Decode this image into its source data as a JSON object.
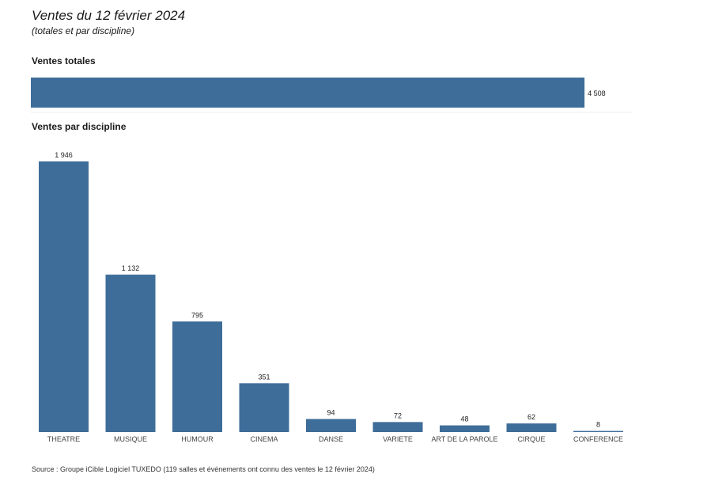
{
  "header": {
    "title": "Ventes du 12 février 2024",
    "subtitle": "(totales et par discipline)"
  },
  "sections": {
    "total_label": "Ventes totales",
    "discipline_label": "Ventes par discipline"
  },
  "footer": {
    "source": "Source : Groupe iCible Logiciel TUXEDO (119 salles et événements ont connu des ventes le 12 février 2024)"
  },
  "colors": {
    "bar": "#3e6d99",
    "text": "#222222"
  },
  "chart_data": [
    {
      "type": "bar",
      "orientation": "horizontal",
      "title": "Ventes totales",
      "categories": [
        ""
      ],
      "values": [
        4508
      ],
      "value_labels": [
        "4 508"
      ],
      "xlim": [
        0,
        4900
      ]
    },
    {
      "type": "bar",
      "orientation": "vertical",
      "title": "Ventes par discipline",
      "categories": [
        "THEATRE",
        "MUSIQUE",
        "HUMOUR",
        "CINEMA",
        "DANSE",
        "VARIETE",
        "ART DE LA PAROLE",
        "CIRQUE",
        "CONFERENCE"
      ],
      "values": [
        1946,
        1132,
        795,
        351,
        94,
        72,
        48,
        62,
        8
      ],
      "value_labels": [
        "1 946",
        "1 132",
        "795",
        "351",
        "94",
        "72",
        "48",
        "62",
        "8"
      ],
      "ylim": [
        0,
        1946
      ],
      "grid": false,
      "legend": "none"
    }
  ]
}
